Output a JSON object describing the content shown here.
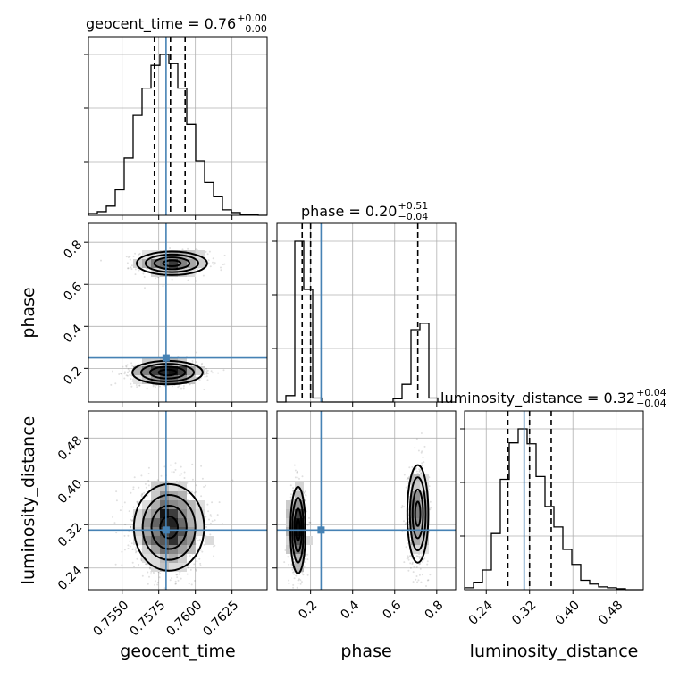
{
  "chart_data": {
    "type": "corner",
    "parameters": [
      "geocent_time",
      "phase",
      "luminosity_distance"
    ],
    "axis_labels": {
      "geocent_time": "geocent_time",
      "phase": "phase",
      "luminosity_distance": "luminosity_distance"
    },
    "truths": {
      "geocent_time": 0.758,
      "phase": 0.25,
      "luminosity_distance": 0.31
    },
    "ranges": {
      "geocent_time": [
        0.7527,
        0.7649
      ],
      "phase": [
        0.04,
        0.89
      ],
      "luminosity_distance": [
        0.2,
        0.53
      ]
    },
    "ticks": {
      "geocent_time": [
        0.755,
        0.7575,
        0.76,
        0.7625
      ],
      "phase": [
        0.2,
        0.4,
        0.6,
        0.8
      ],
      "luminosity_distance": [
        0.24,
        0.32,
        0.4,
        0.48
      ]
    },
    "tick_labels": {
      "geocent_time": [
        "0.7550",
        "0.7575",
        "0.7600",
        "0.7625"
      ],
      "phase": [
        "0.2",
        "0.4",
        "0.6",
        "0.8"
      ],
      "luminosity_distance": [
        "0.24",
        "0.32",
        "0.40",
        "0.48"
      ]
    },
    "quantiles": {
      "geocent_time": [
        0.7572,
        0.7583,
        0.7593
      ],
      "phase": [
        0.16,
        0.2,
        0.71
      ],
      "luminosity_distance": [
        0.28,
        0.32,
        0.36
      ]
    },
    "titles": [
      {
        "param": "geocent_time",
        "name": "geocent_time = 0.76",
        "sup": "+0.00",
        "sub": "−0.00"
      },
      {
        "param": "phase",
        "name": "phase = 0.20",
        "sup": "+0.51",
        "sub": "−0.04"
      },
      {
        "param": "luminosity_distance",
        "name": "luminosity_distance = 0.32",
        "sup": "+0.04",
        "sub": "−0.04"
      }
    ],
    "histograms": {
      "geocent_time": {
        "edges": [
          0.7527,
          0.75331,
          0.75392,
          0.75453,
          0.75514,
          0.75575,
          0.75636,
          0.75697,
          0.75758,
          0.75819,
          0.7588,
          0.75941,
          0.76002,
          0.76063,
          0.76124,
          0.76185,
          0.76246,
          0.76307,
          0.76368,
          0.76429,
          0.7649
        ],
        "counts": [
          2,
          4,
          10,
          28,
          63,
          110,
          140,
          165,
          177,
          167,
          140,
          100,
          60,
          36,
          21,
          6,
          3,
          1,
          1,
          0
        ]
      },
      "phase": {
        "edges": [
          0.04,
          0.0825,
          0.125,
          0.1675,
          0.21,
          0.2525,
          0.295,
          0.3375,
          0.38,
          0.4225,
          0.465,
          0.5075,
          0.55,
          0.5925,
          0.635,
          0.6775,
          0.72,
          0.7625,
          0.805,
          0.8475,
          0.89
        ],
        "counts": [
          0,
          8,
          200,
          140,
          5,
          0,
          0,
          0,
          0,
          0,
          0,
          0,
          0,
          4,
          22,
          90,
          98,
          5,
          0,
          0
        ]
      },
      "luminosity_distance": {
        "edges": [
          0.2,
          0.2165,
          0.233,
          0.2495,
          0.266,
          0.2825,
          0.299,
          0.3155,
          0.332,
          0.3485,
          0.365,
          0.3815,
          0.398,
          0.4145,
          0.431,
          0.4475,
          0.464,
          0.4805,
          0.497,
          0.5135,
          0.53
        ],
        "counts": [
          2,
          8,
          21,
          60,
          118,
          157,
          172,
          156,
          121,
          89,
          67,
          43,
          27,
          10,
          6,
          3,
          2,
          1,
          0,
          0
        ]
      }
    },
    "density_2d": [
      {
        "x": "geocent_time",
        "y": "phase",
        "clusters": [
          {
            "mean": [
              0.7584,
              0.7
            ],
            "sd": [
              0.0012,
              0.028
            ],
            "n": 700
          },
          {
            "mean": [
              0.7581,
              0.18
            ],
            "sd": [
              0.0012,
              0.028
            ],
            "n": 1000
          }
        ]
      },
      {
        "x": "geocent_time",
        "y": "luminosity_distance",
        "clusters": [
          {
            "mean": [
              0.7582,
              0.315
            ],
            "sd": [
              0.0012,
              0.04
            ],
            "n": 1500
          }
        ]
      },
      {
        "x": "phase",
        "y": "luminosity_distance",
        "clusters": [
          {
            "mean": [
              0.14,
              0.31
            ],
            "sd": [
              0.018,
              0.04
            ],
            "n": 800
          },
          {
            "mean": [
              0.71,
              0.34
            ],
            "sd": [
              0.025,
              0.045
            ],
            "n": 700
          }
        ]
      }
    ]
  }
}
